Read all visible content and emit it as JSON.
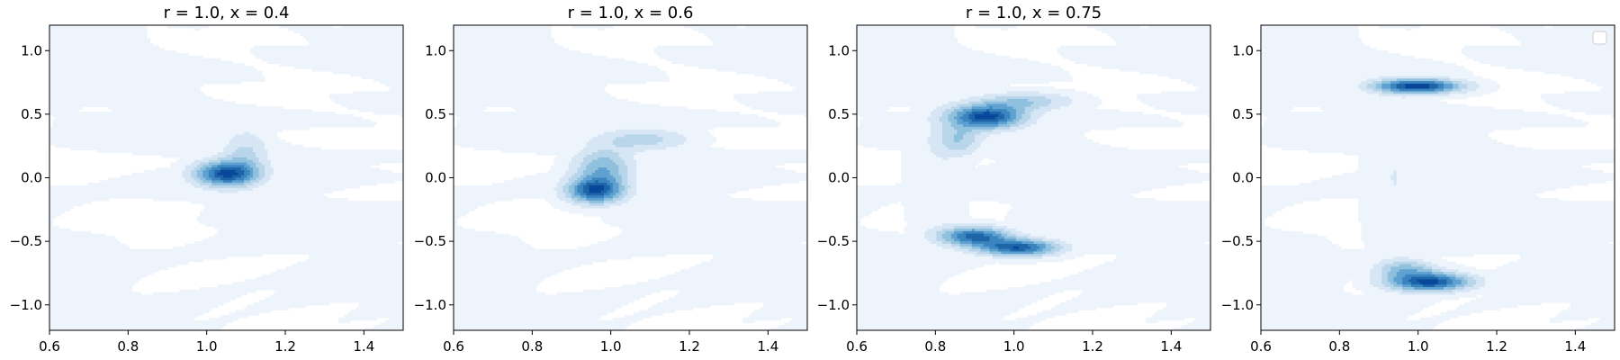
{
  "colors": {
    "background": "#ffffff",
    "axes": "#000000",
    "levels": [
      "#eef4fb",
      "#d6e6f5",
      "#b8d5ea",
      "#8fc1de",
      "#5fa1d0",
      "#3a84bf",
      "#1d65a7",
      "#08479a"
    ]
  },
  "chart_data": [
    {
      "type": "kde-filled-contour",
      "title": "r = 1.0, x = 0.4",
      "xlim": [
        0.6,
        1.5
      ],
      "ylim": [
        -1.2,
        1.2
      ],
      "xticks": [
        0.6,
        0.8,
        1.0,
        1.2,
        1.4
      ],
      "xtick_labels": [
        "0.6",
        "0.8",
        "1.0",
        "1.2",
        "1.4"
      ],
      "yticks": [
        -1.0,
        -0.5,
        0.0,
        0.5,
        1.0
      ],
      "ytick_labels": [
        "−1.0",
        "−0.5",
        "0.0",
        "0.5",
        "1.0"
      ],
      "background_level": 0.04,
      "blobs": [
        {
          "cx": 1.05,
          "cy": 0.03,
          "sx": 0.055,
          "sy": 0.07,
          "w": 1.0,
          "rot": 0.0
        },
        {
          "cx": 1.1,
          "cy": 0.2,
          "sx": 0.04,
          "sy": 0.12,
          "w": 0.28,
          "rot": 0.0
        }
      ],
      "legend": false
    },
    {
      "type": "kde-filled-contour",
      "title": "r = 1.0, x = 0.6",
      "xlim": [
        0.6,
        1.5
      ],
      "ylim": [
        -1.2,
        1.2
      ],
      "xticks": [
        0.6,
        0.8,
        1.0,
        1.2,
        1.4
      ],
      "xtick_labels": [
        "0.6",
        "0.8",
        "1.0",
        "1.2",
        "1.4"
      ],
      "yticks": [
        -1.0,
        -0.5,
        0.0,
        0.5,
        1.0
      ],
      "ytick_labels": [
        "−1.0",
        "−0.5",
        "0.0",
        "0.5",
        "1.0"
      ],
      "background_level": 0.04,
      "blobs": [
        {
          "cx": 0.96,
          "cy": -0.1,
          "sx": 0.05,
          "sy": 0.07,
          "w": 1.0,
          "rot": 0.0
        },
        {
          "cx": 0.98,
          "cy": 0.08,
          "sx": 0.05,
          "sy": 0.1,
          "w": 0.55,
          "rot": 0.0
        },
        {
          "cx": 1.08,
          "cy": 0.3,
          "sx": 0.08,
          "sy": 0.06,
          "w": 0.35,
          "rot": 0.0
        }
      ],
      "legend": false
    },
    {
      "type": "kde-filled-contour",
      "title": "r = 1.0, x = 0.75",
      "xlim": [
        0.6,
        1.5
      ],
      "ylim": [
        -1.2,
        1.2
      ],
      "xticks": [
        0.6,
        0.8,
        1.0,
        1.2,
        1.4
      ],
      "xtick_labels": [
        "0.6",
        "0.8",
        "1.0",
        "1.2",
        "1.4"
      ],
      "yticks": [
        -1.0,
        -0.5,
        0.0,
        0.5,
        1.0
      ],
      "ytick_labels": [
        "−1.0",
        "−0.5",
        "0.0",
        "0.5",
        "1.0"
      ],
      "background_level": 0.04,
      "blobs": [
        {
          "cx": 0.93,
          "cy": 0.48,
          "sx": 0.065,
          "sy": 0.065,
          "w": 1.0,
          "rot": 0.0
        },
        {
          "cx": 1.03,
          "cy": 0.6,
          "sx": 0.08,
          "sy": 0.05,
          "w": 0.35,
          "rot": 0.0
        },
        {
          "cx": 0.86,
          "cy": 0.3,
          "sx": 0.04,
          "sy": 0.08,
          "w": 0.35,
          "rot": 0.0
        },
        {
          "cx": 0.9,
          "cy": -0.46,
          "sx": 0.06,
          "sy": 0.05,
          "w": 0.85,
          "rot": 0.0
        },
        {
          "cx": 1.01,
          "cy": -0.55,
          "sx": 0.07,
          "sy": 0.045,
          "w": 0.9,
          "rot": 0.0
        },
        {
          "cx": 0.8,
          "cy": 0.0,
          "sx": 0.05,
          "sy": 0.35,
          "w": 0.1,
          "rot": 0.0
        }
      ],
      "legend": false
    },
    {
      "type": "kde-filled-contour",
      "title": "",
      "xlim": [
        0.6,
        1.5
      ],
      "ylim": [
        -1.2,
        1.2
      ],
      "xticks": [
        0.6,
        0.8,
        1.0,
        1.2,
        1.4
      ],
      "xtick_labels": [
        "0.6",
        "0.8",
        "1.0",
        "1.2",
        "1.4"
      ],
      "yticks": [
        -1.0,
        -0.5,
        0.0,
        0.5,
        1.0
      ],
      "ytick_labels": [
        "−1.0",
        "−0.5",
        "0.0",
        "0.5",
        "1.0"
      ],
      "background_level": 0.04,
      "blobs": [
        {
          "cx": 1.0,
          "cy": 0.72,
          "sx": 0.075,
          "sy": 0.04,
          "w": 1.0,
          "rot": 0.0
        },
        {
          "cx": 1.03,
          "cy": -0.82,
          "sx": 0.07,
          "sy": 0.05,
          "w": 0.95,
          "rot": 0.0
        },
        {
          "cx": 0.97,
          "cy": -0.72,
          "sx": 0.05,
          "sy": 0.05,
          "w": 0.4,
          "rot": 0.0
        },
        {
          "cx": 0.94,
          "cy": 0.0,
          "sx": 0.05,
          "sy": 0.5,
          "w": 0.12,
          "rot": 0.0
        }
      ],
      "legend": true,
      "legend_position": "upper right",
      "legend_entries": []
    }
  ]
}
